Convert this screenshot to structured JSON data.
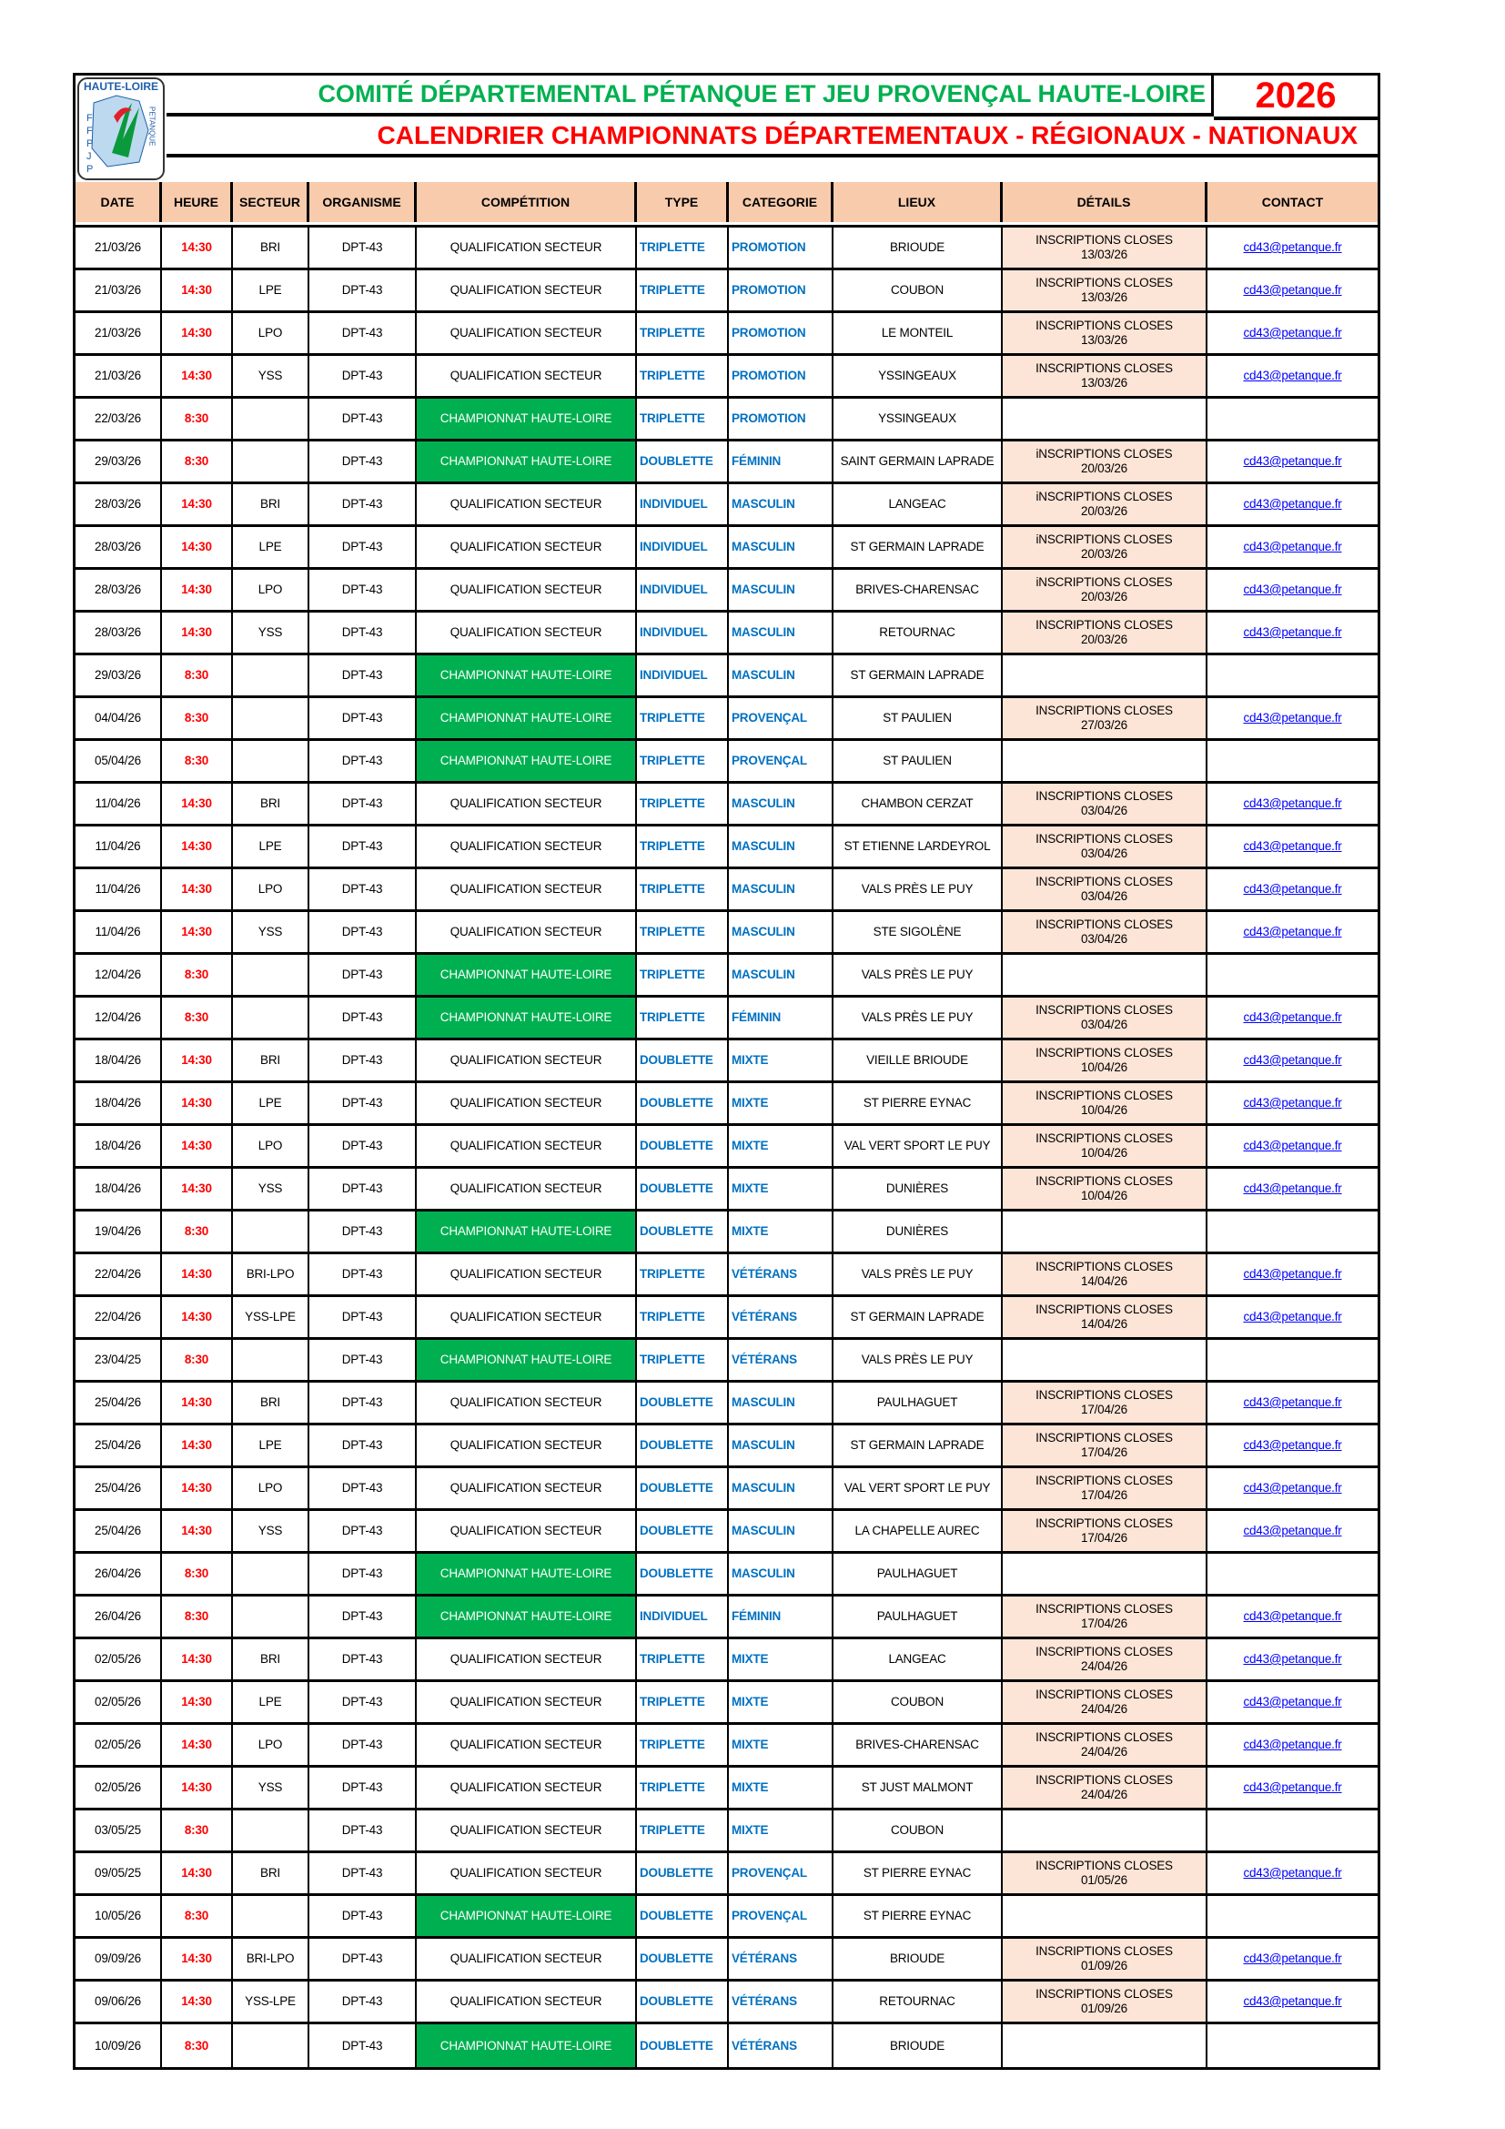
{
  "logo": {
    "text_top": "HAUTE-LOIRE",
    "text_left": "FFPJP",
    "text_right": "PETANQUE"
  },
  "header": {
    "title": "COMITÉ DÉPARTEMENTAL PÉTANQUE ET JEU PROVENÇAL HAUTE-LOIRE",
    "year": "2026",
    "subtitle": "CALENDRIER CHAMPIONNATS DÉPARTEMENTAUX - RÉGIONAUX - NATIONAUX"
  },
  "colors": {
    "title_green": "#00b050",
    "red": "#ff0000",
    "blue": "#0070c0",
    "header_bg": "#f8cbad",
    "details_bg": "#fce4d6",
    "championnat_bg": "#00b050"
  },
  "columns": [
    "DATE",
    "HEURE",
    "SECTEUR",
    "ORGANISME",
    "COMPÉTITION",
    "TYPE",
    "CATEGORIE",
    "LIEUX",
    "DÉTAILS",
    "CONTACT"
  ],
  "rows": [
    [
      "21/03/26",
      "14:30",
      "BRI",
      "DPT-43",
      "QUALIFICATION SECTEUR",
      "TRIPLETTE",
      "PROMOTION",
      "BRIOUDE",
      "INSCRIPTIONS CLOSES",
      "13/03/26",
      "cd43@petanque.fr"
    ],
    [
      "21/03/26",
      "14:30",
      "LPE",
      "DPT-43",
      "QUALIFICATION SECTEUR",
      "TRIPLETTE",
      "PROMOTION",
      "COUBON",
      "INSCRIPTIONS CLOSES",
      "13/03/26",
      "cd43@petanque.fr"
    ],
    [
      "21/03/26",
      "14:30",
      "LPO",
      "DPT-43",
      "QUALIFICATION SECTEUR",
      "TRIPLETTE",
      "PROMOTION",
      "LE MONTEIL",
      "INSCRIPTIONS CLOSES",
      "13/03/26",
      "cd43@petanque.fr"
    ],
    [
      "21/03/26",
      "14:30",
      "YSS",
      "DPT-43",
      "QUALIFICATION SECTEUR",
      "TRIPLETTE",
      "PROMOTION",
      "YSSINGEAUX",
      "INSCRIPTIONS CLOSES",
      "13/03/26",
      "cd43@petanque.fr"
    ],
    [
      "22/03/26",
      "8:30",
      "",
      "DPT-43",
      "CHAMPIONNAT HAUTE-LOIRE",
      "TRIPLETTE",
      "PROMOTION",
      "YSSINGEAUX",
      "",
      "",
      ""
    ],
    [
      "29/03/26",
      "8:30",
      "",
      "DPT-43",
      "CHAMPIONNAT HAUTE-LOIRE",
      "DOUBLETTE",
      "FÉMININ",
      "SAINT GERMAIN LAPRADE",
      "iNSCRIPTIONS CLOSES",
      "20/03/26",
      "cd43@petanque.fr"
    ],
    [
      "28/03/26",
      "14:30",
      "BRI",
      "DPT-43",
      "QUALIFICATION SECTEUR",
      "INDIVIDUEL",
      "MASCULIN",
      "LANGEAC",
      "iNSCRIPTIONS CLOSES",
      "20/03/26",
      "cd43@petanque.fr"
    ],
    [
      "28/03/26",
      "14:30",
      "LPE",
      "DPT-43",
      "QUALIFICATION SECTEUR",
      "INDIVIDUEL",
      "MASCULIN",
      "ST GERMAIN LAPRADE",
      "iNSCRIPTIONS CLOSES",
      "20/03/26",
      "cd43@petanque.fr"
    ],
    [
      "28/03/26",
      "14:30",
      "LPO",
      "DPT-43",
      "QUALIFICATION SECTEUR",
      "INDIVIDUEL",
      "MASCULIN",
      "BRIVES-CHARENSAC",
      "iNSCRIPTIONS CLOSES",
      "20/03/26",
      "cd43@petanque.fr"
    ],
    [
      "28/03/26",
      "14:30",
      "YSS",
      "DPT-43",
      "QUALIFICATION SECTEUR",
      "INDIVIDUEL",
      "MASCULIN",
      "RETOURNAC",
      "INSCRIPTIONS CLOSES",
      "20/03/26",
      "cd43@petanque.fr"
    ],
    [
      "29/03/26",
      "8:30",
      "",
      "DPT-43",
      "CHAMPIONNAT HAUTE-LOIRE",
      "INDIVIDUEL",
      "MASCULIN",
      "ST GERMAIN LAPRADE",
      "",
      "",
      ""
    ],
    [
      "04/04/26",
      "8:30",
      "",
      "DPT-43",
      "CHAMPIONNAT HAUTE-LOIRE",
      "TRIPLETTE",
      "PROVENÇAL",
      "ST PAULIEN",
      "INSCRIPTIONS CLOSES",
      "27/03/26",
      "cd43@petanque.fr"
    ],
    [
      "05/04/26",
      "8:30",
      "",
      "DPT-43",
      "CHAMPIONNAT HAUTE-LOIRE",
      "TRIPLETTE",
      "PROVENÇAL",
      "ST PAULIEN",
      "",
      "",
      ""
    ],
    [
      "11/04/26",
      "14:30",
      "BRI",
      "DPT-43",
      "QUALIFICATION SECTEUR",
      "TRIPLETTE",
      "MASCULIN",
      "CHAMBON CERZAT",
      "INSCRIPTIONS CLOSES",
      "03/04/26",
      "cd43@petanque.fr"
    ],
    [
      "11/04/26",
      "14:30",
      "LPE",
      "DPT-43",
      "QUALIFICATION SECTEUR",
      "TRIPLETTE",
      "MASCULIN",
      "ST ETIENNE LARDEYROL",
      "INSCRIPTIONS CLOSES",
      "03/04/26",
      "cd43@petanque.fr"
    ],
    [
      "11/04/26",
      "14:30",
      "LPO",
      "DPT-43",
      "QUALIFICATION SECTEUR",
      "TRIPLETTE",
      "MASCULIN",
      "VALS PRÈS LE PUY",
      "INSCRIPTIONS CLOSES",
      "03/04/26",
      "cd43@petanque.fr"
    ],
    [
      "11/04/26",
      "14:30",
      "YSS",
      "DPT-43",
      "QUALIFICATION SECTEUR",
      "TRIPLETTE",
      "MASCULIN",
      "STE SIGOLÈNE",
      "INSCRIPTIONS CLOSES",
      "03/04/26",
      "cd43@petanque.fr"
    ],
    [
      "12/04/26",
      "8:30",
      "",
      "DPT-43",
      "CHAMPIONNAT HAUTE-LOIRE",
      "TRIPLETTE",
      "MASCULIN",
      "VALS PRÈS LE PUY",
      "",
      "",
      ""
    ],
    [
      "12/04/26",
      "8:30",
      "",
      "DPT-43",
      "CHAMPIONNAT HAUTE-LOIRE",
      "TRIPLETTE",
      "FÉMININ",
      "VALS PRÈS LE PUY",
      "INSCRIPTIONS CLOSES",
      "03/04/26",
      "cd43@petanque.fr"
    ],
    [
      "18/04/26",
      "14:30",
      "BRI",
      "DPT-43",
      "QUALIFICATION SECTEUR",
      "DOUBLETTE",
      "MIXTE",
      "VIEILLE BRIOUDE",
      "INSCRIPTIONS CLOSES",
      "10/04/26",
      "cd43@petanque.fr"
    ],
    [
      "18/04/26",
      "14:30",
      "LPE",
      "DPT-43",
      "QUALIFICATION SECTEUR",
      "DOUBLETTE",
      "MIXTE",
      "ST PIERRE EYNAC",
      "INSCRIPTIONS CLOSES",
      "10/04/26",
      "cd43@petanque.fr"
    ],
    [
      "18/04/26",
      "14:30",
      "LPO",
      "DPT-43",
      "QUALIFICATION SECTEUR",
      "DOUBLETTE",
      "MIXTE",
      "VAL VERT SPORT LE PUY",
      "INSCRIPTIONS CLOSES",
      "10/04/26",
      "cd43@petanque.fr"
    ],
    [
      "18/04/26",
      "14:30",
      "YSS",
      "DPT-43",
      "QUALIFICATION SECTEUR",
      "DOUBLETTE",
      "MIXTE",
      "DUNIÈRES",
      "INSCRIPTIONS CLOSES",
      "10/04/26",
      "cd43@petanque.fr"
    ],
    [
      "19/04/26",
      "8:30",
      "",
      "DPT-43",
      "CHAMPIONNAT HAUTE-LOIRE",
      "DOUBLETTE",
      "MIXTE",
      "DUNIÈRES",
      "",
      "",
      ""
    ],
    [
      "22/04/26",
      "14:30",
      "BRI-LPO",
      "DPT-43",
      "QUALIFICATION SECTEUR",
      "TRIPLETTE",
      "VÉTÉRANS",
      "VALS PRÈS LE PUY",
      "INSCRIPTIONS CLOSES",
      "14/04/26",
      "cd43@petanque.fr"
    ],
    [
      "22/04/26",
      "14:30",
      "YSS-LPE",
      "DPT-43",
      "QUALIFICATION SECTEUR",
      "TRIPLETTE",
      "VÉTÉRANS",
      "ST GERMAIN LAPRADE",
      "INSCRIPTIONS CLOSES",
      "14/04/26",
      "cd43@petanque.fr"
    ],
    [
      "23/04/25",
      "8:30",
      "",
      "DPT-43",
      "CHAMPIONNAT HAUTE-LOIRE",
      "TRIPLETTE",
      "VÉTÉRANS",
      "VALS PRÈS LE PUY",
      "",
      "",
      ""
    ],
    [
      "25/04/26",
      "14:30",
      "BRI",
      "DPT-43",
      "QUALIFICATION SECTEUR",
      "DOUBLETTE",
      "MASCULIN",
      "PAULHAGUET",
      "INSCRIPTIONS CLOSES",
      "17/04/26",
      "cd43@petanque.fr"
    ],
    [
      "25/04/26",
      "14:30",
      "LPE",
      "DPT-43",
      "QUALIFICATION SECTEUR",
      "DOUBLETTE",
      "MASCULIN",
      "ST GERMAIN LAPRADE",
      "INSCRIPTIONS CLOSES",
      "17/04/26",
      "cd43@petanque.fr"
    ],
    [
      "25/04/26",
      "14:30",
      "LPO",
      "DPT-43",
      "QUALIFICATION SECTEUR",
      "DOUBLETTE",
      "MASCULIN",
      "VAL VERT SPORT LE PUY",
      "INSCRIPTIONS CLOSES",
      "17/04/26",
      "cd43@petanque.fr"
    ],
    [
      "25/04/26",
      "14:30",
      "YSS",
      "DPT-43",
      "QUALIFICATION SECTEUR",
      "DOUBLETTE",
      "MASCULIN",
      "LA CHAPELLE AUREC",
      "INSCRIPTIONS CLOSES",
      "17/04/26",
      "cd43@petanque.fr"
    ],
    [
      "26/04/26",
      "8:30",
      "",
      "DPT-43",
      "CHAMPIONNAT HAUTE-LOIRE",
      "DOUBLETTE",
      "MASCULIN",
      "PAULHAGUET",
      "",
      "",
      ""
    ],
    [
      "26/04/26",
      "8:30",
      "",
      "DPT-43",
      "CHAMPIONNAT HAUTE-LOIRE",
      "INDIVIDUEL",
      "FÉMININ",
      "PAULHAGUET",
      "INSCRIPTIONS CLOSES",
      "17/04/26",
      "cd43@petanque.fr"
    ],
    [
      "02/05/26",
      "14:30",
      "BRI",
      "DPT-43",
      "QUALIFICATION SECTEUR",
      "TRIPLETTE",
      "MIXTE",
      "LANGEAC",
      "INSCRIPTIONS CLOSES",
      "24/04/26",
      "cd43@petanque.fr"
    ],
    [
      "02/05/26",
      "14:30",
      "LPE",
      "DPT-43",
      "QUALIFICATION SECTEUR",
      "TRIPLETTE",
      "MIXTE",
      "COUBON",
      "INSCRIPTIONS CLOSES",
      "24/04/26",
      "cd43@petanque.fr"
    ],
    [
      "02/05/26",
      "14:30",
      "LPO",
      "DPT-43",
      "QUALIFICATION SECTEUR",
      "TRIPLETTE",
      "MIXTE",
      "BRIVES-CHARENSAC",
      "INSCRIPTIONS CLOSES",
      "24/04/26",
      "cd43@petanque.fr"
    ],
    [
      "02/05/26",
      "14:30",
      "YSS",
      "DPT-43",
      "QUALIFICATION SECTEUR",
      "TRIPLETTE",
      "MIXTE",
      "ST JUST MALMONT",
      "INSCRIPTIONS CLOSES",
      "24/04/26",
      "cd43@petanque.fr"
    ],
    [
      "03/05/25",
      "8:30",
      "",
      "DPT-43",
      "QUALIFICATION SECTEUR",
      "TRIPLETTE",
      "MIXTE",
      "COUBON",
      "",
      "",
      ""
    ],
    [
      "09/05/25",
      "14:30",
      "BRI",
      "DPT-43",
      "QUALIFICATION SECTEUR",
      "DOUBLETTE",
      "PROVENÇAL",
      "ST PIERRE EYNAC",
      "INSCRIPTIONS CLOSES",
      "01/05/26",
      "cd43@petanque.fr"
    ],
    [
      "10/05/26",
      "8:30",
      "",
      "DPT-43",
      "CHAMPIONNAT HAUTE-LOIRE",
      "DOUBLETTE",
      "PROVENÇAL",
      "ST PIERRE EYNAC",
      "",
      "",
      ""
    ],
    [
      "09/09/26",
      "14:30",
      "BRI-LPO",
      "DPT-43",
      "QUALIFICATION SECTEUR",
      "DOUBLETTE",
      "VÉTÉRANS",
      "BRIOUDE",
      "INSCRIPTIONS CLOSES",
      "01/09/26",
      "cd43@petanque.fr"
    ],
    [
      "09/06/26",
      "14:30",
      "YSS-LPE",
      "DPT-43",
      "QUALIFICATION SECTEUR",
      "DOUBLETTE",
      "VÉTÉRANS",
      "RETOURNAC",
      "INSCRIPTIONS CLOSES",
      "01/09/26",
      "cd43@petanque.fr"
    ],
    [
      "10/09/26",
      "8:30",
      "",
      "DPT-43",
      "CHAMPIONNAT HAUTE-LOIRE",
      "DOUBLETTE",
      "VÉTÉRANS",
      "BRIOUDE",
      "",
      "",
      ""
    ]
  ]
}
